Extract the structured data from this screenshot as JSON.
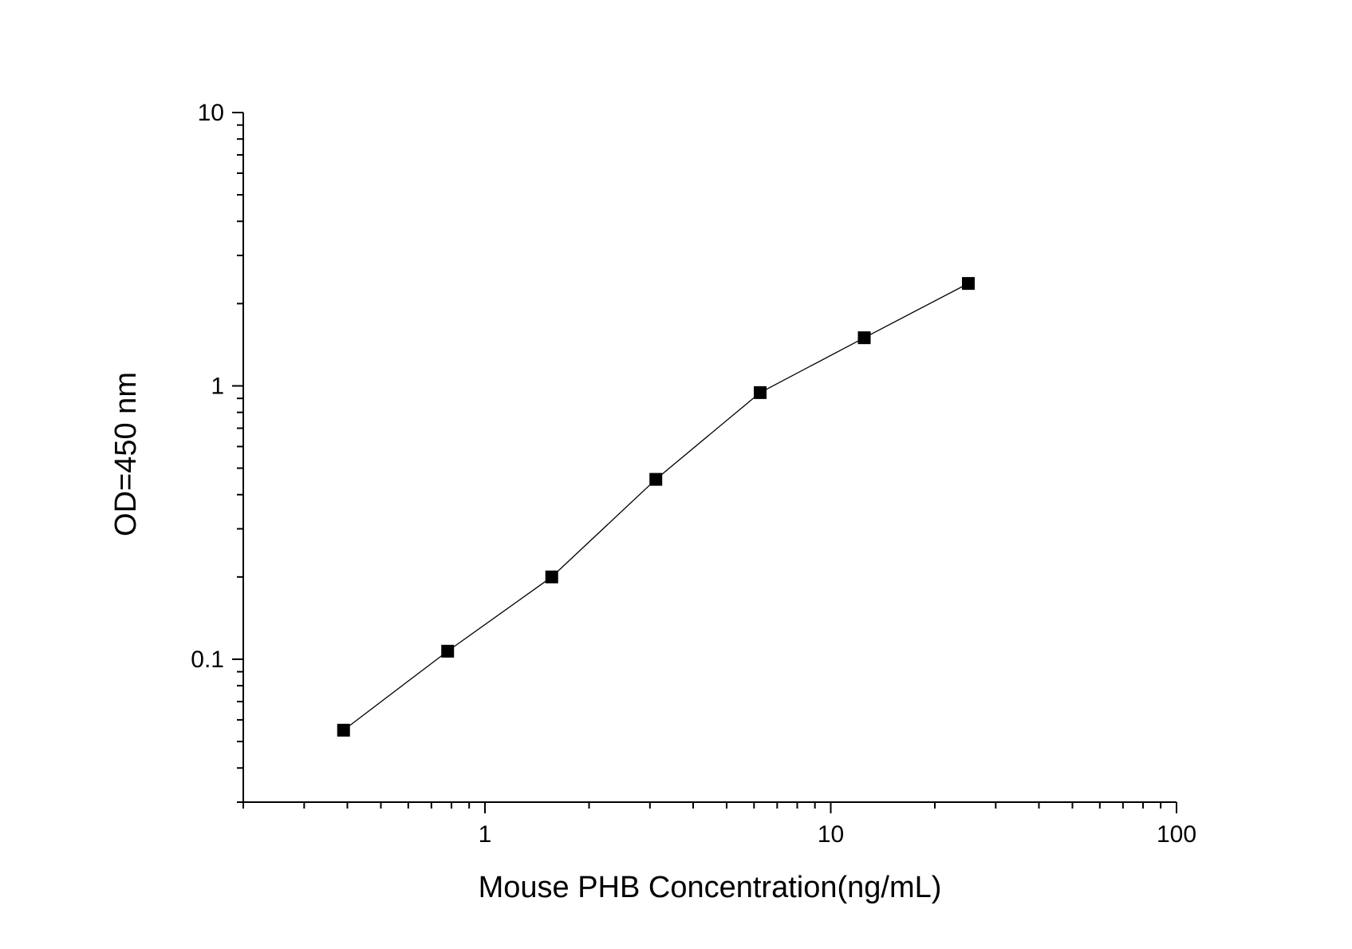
{
  "chart_data": {
    "type": "line",
    "title": "",
    "xlabel": "Mouse PHB Concentration(ng/mL)",
    "ylabel": "OD=450 nm",
    "xscale": "log",
    "yscale": "log",
    "xlim": [
      0.2,
      100
    ],
    "ylim": [
      0.03,
      10
    ],
    "xticks": [
      1,
      10,
      100
    ],
    "xtick_labels": [
      "1",
      "10",
      "100"
    ],
    "yticks": [
      0.1,
      1,
      10
    ],
    "ytick_labels": [
      "0.1",
      "1",
      "10"
    ],
    "grid": false,
    "legend": "none",
    "series": [
      {
        "marker": "square",
        "color": "#000000",
        "x": [
          0.39,
          0.78,
          1.56,
          3.12,
          6.25,
          12.5,
          25
        ],
        "y": [
          0.055,
          0.107,
          0.2,
          0.455,
          0.945,
          1.5,
          2.37
        ]
      }
    ]
  }
}
